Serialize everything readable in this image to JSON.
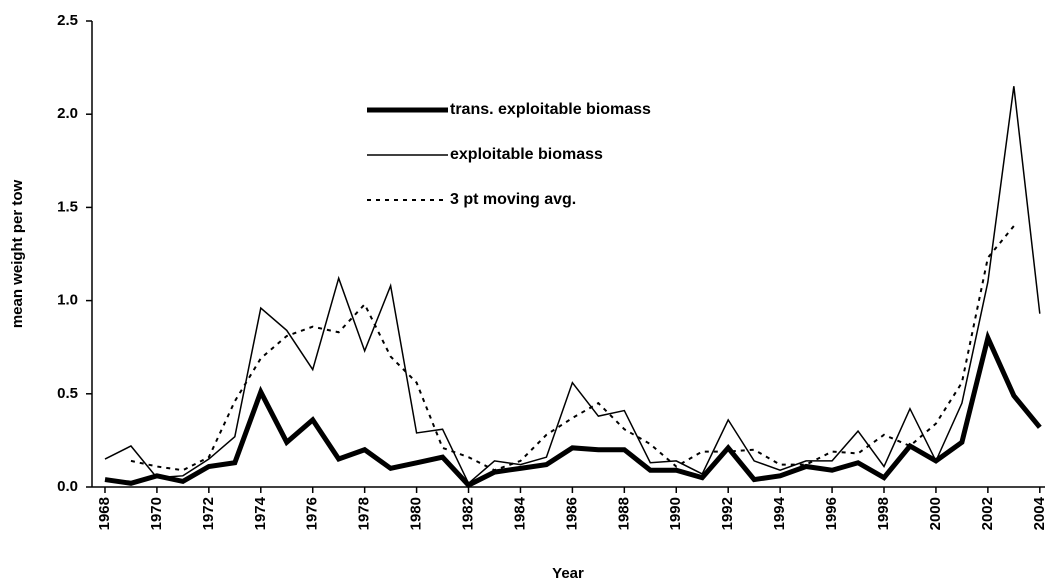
{
  "chart_data": {
    "type": "line",
    "x_label": "Year",
    "y_label": "mean weight per tow",
    "x": [
      1968,
      1969,
      1970,
      1971,
      1972,
      1973,
      1974,
      1975,
      1976,
      1977,
      1978,
      1979,
      1980,
      1981,
      1982,
      1983,
      1984,
      1985,
      1986,
      1987,
      1988,
      1989,
      1990,
      1991,
      1992,
      1993,
      1994,
      1995,
      1996,
      1997,
      1998,
      1999,
      2000,
      2001,
      2002,
      2003,
      2004
    ],
    "series": [
      {
        "name": "trans. exploitable biomass",
        "color": "#000000",
        "width": 5,
        "dash": "none",
        "values": [
          0.04,
          0.02,
          0.06,
          0.03,
          0.11,
          0.13,
          0.51,
          0.24,
          0.36,
          0.15,
          0.2,
          0.1,
          0.13,
          0.16,
          0.01,
          0.08,
          0.1,
          0.12,
          0.21,
          0.2,
          0.2,
          0.09,
          0.09,
          0.05,
          0.21,
          0.04,
          0.06,
          0.11,
          0.09,
          0.13,
          0.05,
          0.22,
          0.14,
          0.24,
          0.8,
          0.49,
          0.32
        ]
      },
      {
        "name": "exploitable biomass",
        "color": "#000000",
        "width": 1.5,
        "dash": "none",
        "values": [
          0.15,
          0.22,
          0.05,
          0.06,
          0.15,
          0.27,
          0.96,
          0.84,
          0.63,
          1.12,
          0.73,
          1.08,
          0.29,
          0.31,
          0.02,
          0.14,
          0.12,
          0.16,
          0.56,
          0.38,
          0.41,
          0.13,
          0.14,
          0.07,
          0.36,
          0.14,
          0.09,
          0.14,
          0.14,
          0.3,
          0.11,
          0.42,
          0.14,
          0.45,
          1.1,
          2.15,
          0.93
        ]
      },
      {
        "name": "3 pt moving avg.",
        "color": "#000000",
        "width": 2,
        "dash": "4 5",
        "values": [
          null,
          0.14,
          0.11,
          0.09,
          0.16,
          0.46,
          0.69,
          0.81,
          0.86,
          0.83,
          0.98,
          0.7,
          0.56,
          0.21,
          0.16,
          0.09,
          0.14,
          0.28,
          0.37,
          0.45,
          0.31,
          0.23,
          0.11,
          0.19,
          0.19,
          0.2,
          0.12,
          0.12,
          0.19,
          0.18,
          0.28,
          0.22,
          0.34,
          0.56,
          1.23,
          1.4,
          null
        ]
      }
    ],
    "xlim": [
      1967.5,
      2004.2
    ],
    "xticks": [
      1968,
      1970,
      1972,
      1974,
      1976,
      1978,
      1980,
      1982,
      1984,
      1986,
      1988,
      1990,
      1992,
      1994,
      1996,
      1998,
      2000,
      2002,
      2004
    ],
    "ylim": [
      0,
      2.5
    ],
    "yticks": [
      {
        "value": 0,
        "label": "0.0"
      },
      0.5,
      {
        "value": 1,
        "label": "1.0"
      },
      1.5,
      {
        "value": 2,
        "label": "2.0"
      },
      2.5
    ],
    "grid": false
  }
}
